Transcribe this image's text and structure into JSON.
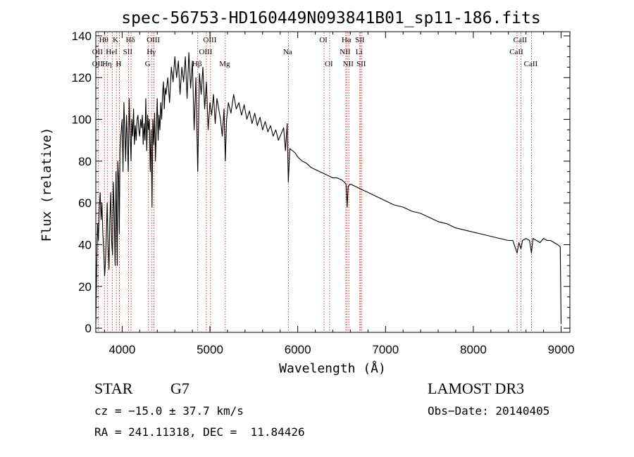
{
  "chart_data": {
    "type": "line",
    "title": "spec-56753-HD160449N093841B01_sp11-186.fits",
    "xlabel": "Wavelength (Å)",
    "ylabel": "Flux (relative)",
    "xlim": [
      3700,
      9100
    ],
    "ylim": [
      -2,
      142
    ],
    "xticks": [
      4000,
      5000,
      6000,
      7000,
      8000,
      9000
    ],
    "xtick_labels": [
      "4000",
      "5000",
      "6000",
      "7000",
      "8000",
      "9000"
    ],
    "yticks": [
      0,
      20,
      40,
      60,
      80,
      100,
      120,
      140
    ],
    "ytick_labels": [
      "0",
      "20",
      "40",
      "60",
      "80",
      "100",
      "120",
      "140"
    ],
    "line_color": "#000000",
    "marker_color": "#cc0000",
    "series": [
      {
        "x": [
          3700,
          3710,
          3720,
          3730,
          3740,
          3750,
          3760,
          3770,
          3780,
          3790,
          3800,
          3810,
          3820,
          3830,
          3840,
          3850,
          3860,
          3870,
          3880,
          3890,
          3900,
          3910,
          3920,
          3930,
          3935,
          3945,
          3950,
          3960,
          3968,
          3975,
          3985,
          4000,
          4010,
          4020,
          4030,
          4040,
          4050,
          4060,
          4070,
          4080,
          4090,
          4101,
          4110,
          4120,
          4130,
          4140,
          4150,
          4160,
          4170,
          4180,
          4190,
          4200,
          4210,
          4220,
          4230,
          4240,
          4250,
          4260,
          4270,
          4280,
          4290,
          4300,
          4310,
          4320,
          4330,
          4340,
          4350,
          4360,
          4370,
          4380,
          4390,
          4400,
          4410,
          4420,
          4430,
          4440,
          4450,
          4460,
          4470,
          4480,
          4490,
          4500,
          4520,
          4540,
          4560,
          4580,
          4600,
          4620,
          4640,
          4660,
          4680,
          4700,
          4720,
          4740,
          4760,
          4780,
          4800,
          4820,
          4840,
          4861,
          4880,
          4900,
          4920,
          4940,
          4960,
          4980,
          5000,
          5020,
          5040,
          5060,
          5080,
          5100,
          5120,
          5140,
          5160,
          5175,
          5190,
          5210,
          5240,
          5270,
          5300,
          5330,
          5360,
          5390,
          5420,
          5450,
          5480,
          5510,
          5540,
          5570,
          5600,
          5630,
          5660,
          5690,
          5720,
          5750,
          5780,
          5810,
          5840,
          5860,
          5880,
          5893,
          5910,
          5940,
          5970,
          6000,
          6050,
          6100,
          6150,
          6200,
          6250,
          6300,
          6350,
          6400,
          6450,
          6500,
          6530,
          6550,
          6563,
          6575,
          6600,
          6650,
          6700,
          6750,
          6800,
          6850,
          6900,
          6950,
          7000,
          7100,
          7200,
          7300,
          7400,
          7500,
          7600,
          7700,
          7800,
          7900,
          8000,
          8100,
          8200,
          8300,
          8400,
          8450,
          8498,
          8520,
          8542,
          8560,
          8600,
          8640,
          8662,
          8680,
          8720,
          8760,
          8800,
          8840,
          8880,
          8920,
          8960,
          8990,
          9000
        ],
        "y": [
          2,
          28,
          50,
          42,
          58,
          65,
          52,
          60,
          45,
          38,
          25,
          32,
          45,
          60,
          40,
          28,
          52,
          65,
          42,
          35,
          70,
          55,
          30,
          75,
          60,
          30,
          80,
          72,
          45,
          85,
          92,
          100,
          75,
          108,
          95,
          80,
          102,
          90,
          75,
          110,
          95,
          80,
          100,
          92,
          105,
          88,
          97,
          90,
          100,
          102,
          95,
          92,
          100,
          96,
          102,
          88,
          98,
          90,
          110,
          85,
          102,
          95,
          100,
          75,
          95,
          58,
          100,
          88,
          103,
          80,
          95,
          110,
          90,
          102,
          95,
          108,
          100,
          112,
          118,
          105,
          115,
          112,
          120,
          108,
          125,
          118,
          130,
          120,
          128,
          112,
          125,
          118,
          130,
          110,
          132,
          115,
          128,
          95,
          120,
          75,
          122,
          112,
          125,
          105,
          118,
          95,
          108,
          102,
          112,
          98,
          110,
          105,
          100,
          92,
          105,
          80,
          100,
          108,
          103,
          112,
          105,
          108,
          102,
          107,
          100,
          104,
          98,
          103,
          97,
          101,
          95,
          99,
          94,
          97,
          92,
          95,
          90,
          93,
          96,
          85,
          98,
          70,
          86,
          85,
          84,
          82,
          80,
          79,
          77,
          76,
          75,
          74,
          73,
          72,
          72,
          71,
          70,
          69,
          58,
          68,
          69,
          68,
          67,
          66,
          65,
          64,
          63,
          62,
          61,
          59,
          58,
          56,
          55,
          53,
          51,
          50,
          48,
          47,
          46,
          45,
          44,
          43,
          42,
          42,
          36,
          41,
          38,
          42,
          43,
          42,
          36,
          43,
          42,
          41,
          43,
          42,
          42,
          41,
          40,
          39,
          2
        ]
      }
    ],
    "line_markers": [
      {
        "wavelength": 3727,
        "top_label": "",
        "mid_label": "OII",
        "low_label": "OII"
      },
      {
        "wavelength": 3798,
        "top_label": "Hθ",
        "mid_label": "",
        "low_label": ""
      },
      {
        "wavelength": 3835,
        "top_label": "",
        "mid_label": "",
        "low_label": "Hη"
      },
      {
        "wavelength": 3889,
        "top_label": "",
        "mid_label": "HeI",
        "low_label": ""
      },
      {
        "wavelength": 3934,
        "top_label": "K",
        "mid_label": "",
        "low_label": ""
      },
      {
        "wavelength": 3969,
        "top_label": "",
        "mid_label": "",
        "low_label": "H"
      },
      {
        "wavelength": 4072,
        "top_label": "",
        "mid_label": "SII",
        "low_label": ""
      },
      {
        "wavelength": 4102,
        "top_label": "Hδ",
        "mid_label": "",
        "low_label": ""
      },
      {
        "wavelength": 4300,
        "top_label": "",
        "mid_label": "",
        "low_label": "G"
      },
      {
        "wavelength": 4340,
        "top_label": "",
        "mid_label": "Hγ",
        "low_label": ""
      },
      {
        "wavelength": 4363,
        "top_label": "OIII",
        "mid_label": "",
        "low_label": ""
      },
      {
        "wavelength": 4861,
        "top_label": "",
        "mid_label": "",
        "low_label": "Hβ"
      },
      {
        "wavelength": 4959,
        "top_label": "",
        "mid_label": "OIII",
        "low_label": ""
      },
      {
        "wavelength": 5007,
        "top_label": "OIII",
        "mid_label": "",
        "low_label": ""
      },
      {
        "wavelength": 5175,
        "top_label": "",
        "mid_label": "",
        "low_label": "Mg"
      },
      {
        "wavelength": 5893,
        "top_label": "",
        "mid_label": "Na",
        "low_label": ""
      },
      {
        "wavelength": 6300,
        "top_label": "OI",
        "mid_label": "",
        "low_label": ""
      },
      {
        "wavelength": 6363,
        "top_label": "",
        "mid_label": "",
        "low_label": "OI"
      },
      {
        "wavelength": 6548,
        "top_label": "",
        "mid_label": "NII",
        "low_label": ""
      },
      {
        "wavelength": 6563,
        "top_label": "Hα",
        "mid_label": "",
        "low_label": ""
      },
      {
        "wavelength": 6583,
        "top_label": "",
        "mid_label": "",
        "low_label": "NII"
      },
      {
        "wavelength": 6707,
        "top_label": "",
        "mid_label": "Li",
        "low_label": ""
      },
      {
        "wavelength": 6716,
        "top_label": "SII",
        "mid_label": "",
        "low_label": ""
      },
      {
        "wavelength": 6731,
        "top_label": "",
        "mid_label": "",
        "low_label": "SII"
      },
      {
        "wavelength": 8498,
        "top_label": "",
        "mid_label": "CaII",
        "low_label": ""
      },
      {
        "wavelength": 8542,
        "top_label": "CaII",
        "mid_label": "",
        "low_label": ""
      },
      {
        "wavelength": 8662,
        "top_label": "",
        "mid_label": "",
        "low_label": "CaII"
      }
    ]
  },
  "info": {
    "object_class": "STAR",
    "subclass": "G7",
    "survey": "LAMOST DR3",
    "cz": "cz = −15.0 ± 37.7 km/s",
    "obs_date": "Obs−Date: 20140405",
    "coords": "RA = 241.11318, DEC =  11.84426"
  }
}
